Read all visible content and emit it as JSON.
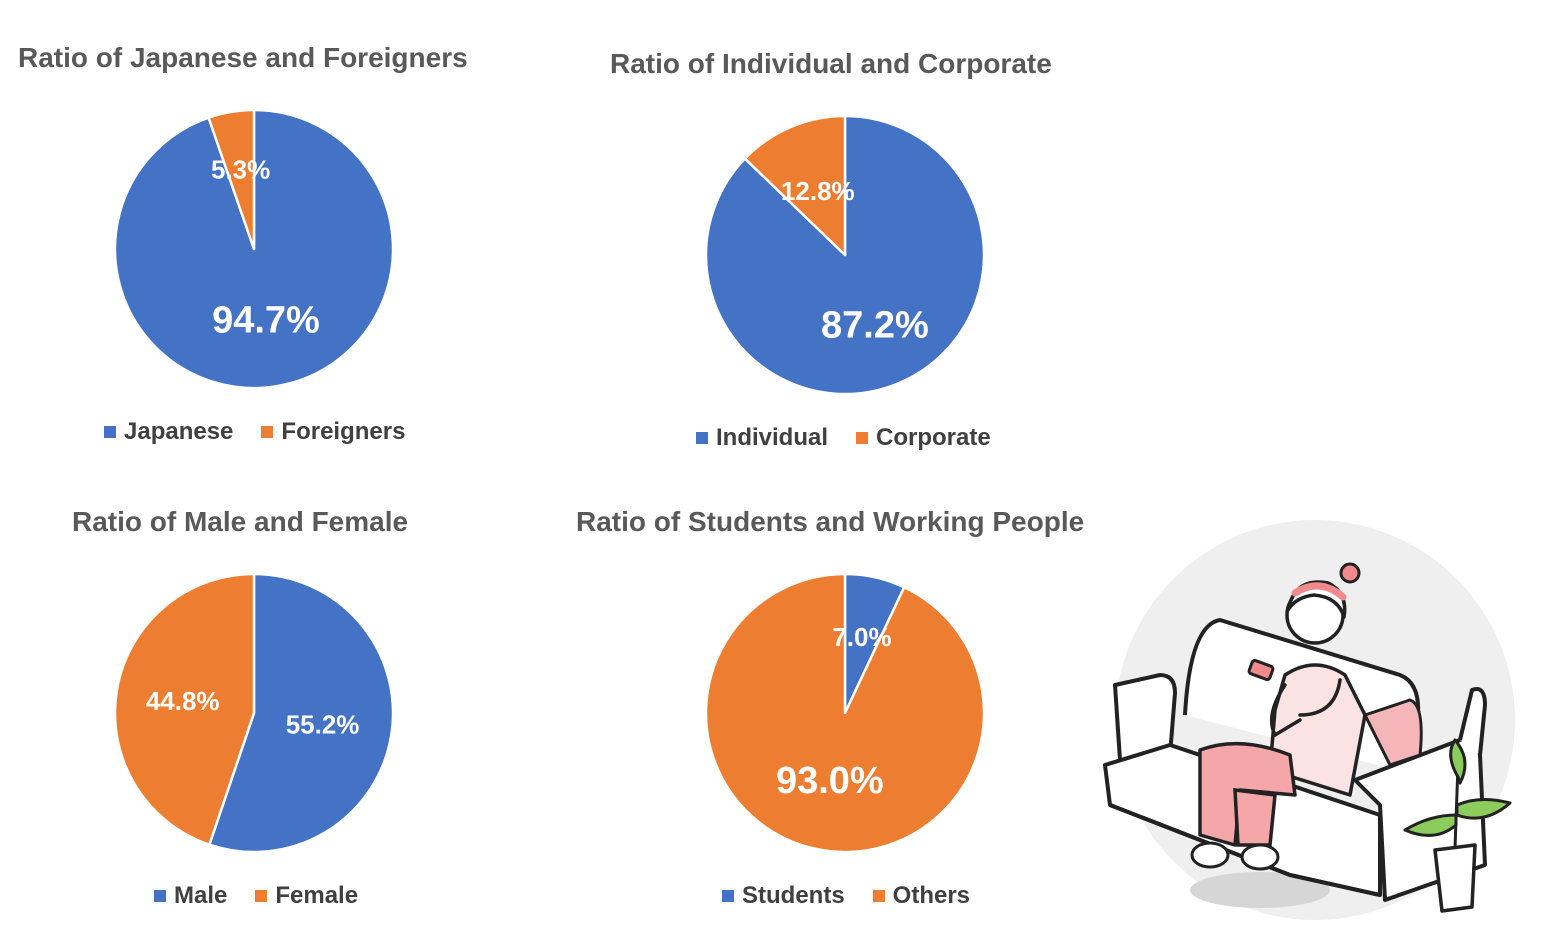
{
  "colors": {
    "blue": "#4472C4",
    "orange": "#ED7D31"
  },
  "chart_data": [
    {
      "type": "pie",
      "title": "Ratio of Japanese and Foreigners",
      "labels": [
        "Japanese",
        "Foreigners"
      ],
      "values": [
        94.7,
        5.3
      ],
      "data_labels": [
        "94.7%",
        "5.3%"
      ],
      "colors": [
        "#4472C4",
        "#ED7D31"
      ],
      "legend_position": "bottom"
    },
    {
      "type": "pie",
      "title": "Ratio of Individual and Corporate",
      "labels": [
        "Individual",
        "Corporate"
      ],
      "values": [
        87.2,
        12.8
      ],
      "data_labels": [
        "87.2%",
        "12.8%"
      ],
      "colors": [
        "#4472C4",
        "#ED7D31"
      ],
      "legend_position": "bottom"
    },
    {
      "type": "pie",
      "title": "Ratio of Male and Female",
      "labels": [
        "Male",
        "Female"
      ],
      "values": [
        55.2,
        44.8
      ],
      "data_labels": [
        "55.2%",
        "44.8%"
      ],
      "colors": [
        "#4472C4",
        "#ED7D31"
      ],
      "legend_position": "bottom"
    },
    {
      "type": "pie",
      "title": "Ratio of Students and Working People",
      "labels": [
        "Students",
        "Others"
      ],
      "values": [
        7.0,
        93.0
      ],
      "data_labels": [
        "7.0%",
        "93.0%"
      ],
      "colors": [
        "#4472C4",
        "#ED7D31"
      ],
      "legend_position": "bottom"
    }
  ]
}
